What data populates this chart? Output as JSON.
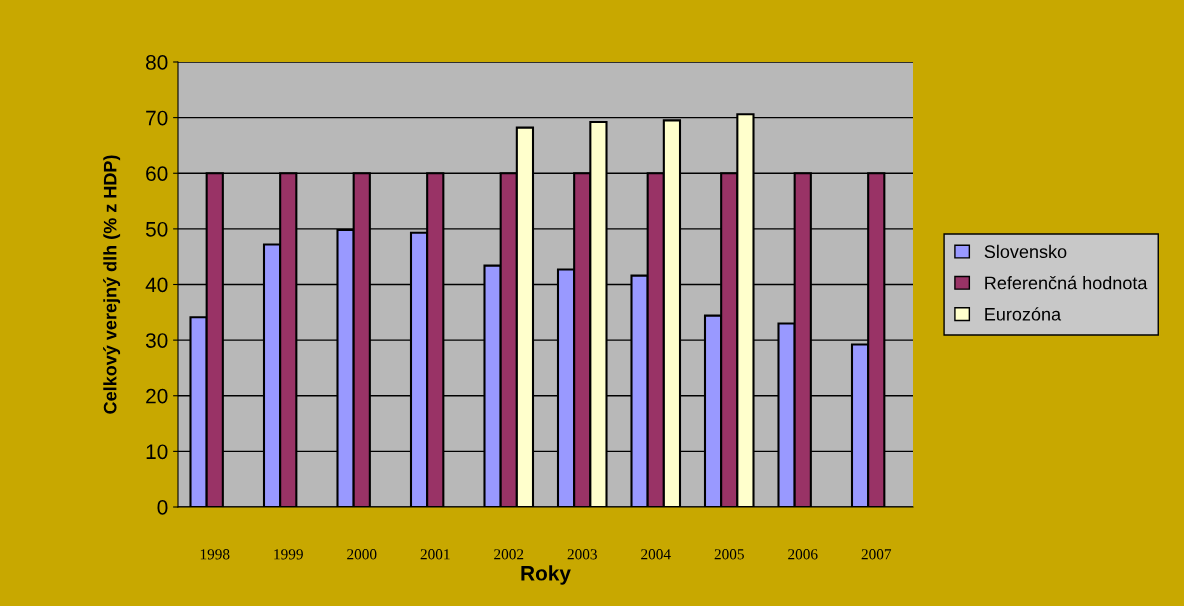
{
  "chart_data": {
    "type": "bar",
    "xlabel": "Roky",
    "ylabel": "Celkový verejný dlh (% z HDP)",
    "categories": [
      "1998",
      "1999",
      "2000",
      "2001",
      "2002",
      "2003",
      "2004",
      "2005",
      "2006",
      "2007"
    ],
    "series": [
      {
        "name": "Slovensko",
        "color": "#9999ff",
        "values": [
          34.1,
          47.2,
          49.8,
          49.3,
          43.4,
          42.7,
          41.6,
          34.4,
          33.0,
          29.2
        ]
      },
      {
        "name": "Referenčná hodnota",
        "color": "#993366",
        "values": [
          60,
          60,
          60,
          60,
          60,
          60,
          60,
          60,
          60,
          60
        ]
      },
      {
        "name": "Eurozóna",
        "color": "#ffffcc",
        "values": [
          null,
          null,
          null,
          null,
          68.2,
          69.2,
          69.5,
          70.6,
          null,
          null
        ]
      }
    ],
    "ylim": [
      0,
      80
    ],
    "yticks": [
      0,
      10,
      20,
      30,
      40,
      50,
      60,
      70,
      80
    ],
    "grid": "y",
    "legend": "right"
  }
}
